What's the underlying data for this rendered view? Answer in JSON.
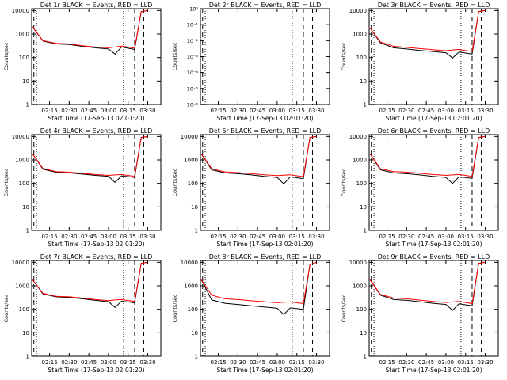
{
  "figure": {
    "xlabel": "Start Time (17-Sep-13 02:01:20)",
    "ylabel": "Counts/sec",
    "x_ticks": [
      "02:15",
      "02:30",
      "02:45",
      "03:00",
      "03:15",
      "03:30"
    ],
    "y_ticks_counts": [
      "1",
      "10",
      "100",
      "1000",
      "10000"
    ],
    "y_ticks_small": [
      "10⁰",
      "10⁻¹",
      "10⁻²",
      "10⁻³",
      "10⁻⁴",
      "10⁻⁵",
      "10⁻⁶"
    ]
  },
  "colors": {
    "events": "#000000",
    "lld": "#ff0000"
  },
  "chart_data": [
    {
      "type": "line",
      "title": "Det 1r BLACK = Events, RED = LLD",
      "xlabel": "Start Time (17-Sep-13 02:01:20)",
      "ylabel": "Counts/sec",
      "yscale": "log",
      "ylim": [
        1,
        12000
      ],
      "series": [
        {
          "name": "Events",
          "x": [
            "02:02",
            "02:10",
            "02:20",
            "02:30",
            "02:40",
            "02:50",
            "03:00",
            "03:05",
            "03:10",
            "03:20",
            "03:25",
            "03:30"
          ],
          "values": [
            2000,
            500,
            380,
            360,
            300,
            260,
            230,
            140,
            280,
            220,
            9000,
            10000
          ]
        },
        {
          "name": "LLD",
          "x": [
            "02:02",
            "02:10",
            "02:20",
            "02:30",
            "02:40",
            "02:50",
            "03:00",
            "03:05",
            "03:10",
            "03:20",
            "03:25",
            "03:30"
          ],
          "values": [
            2000,
            520,
            400,
            380,
            320,
            280,
            260,
            280,
            310,
            250,
            9000,
            10000
          ]
        }
      ]
    },
    {
      "type": "line",
      "title": "Det 2r BLACK = Events, RED = LLD",
      "xlabel": "Start Time (17-Sep-13 02:01:20)",
      "ylabel": "Counts/sec",
      "yscale": "log",
      "ylim": [
        1e-06,
        1
      ],
      "series": [
        {
          "name": "Events",
          "x": [],
          "values": []
        },
        {
          "name": "LLD",
          "x": [],
          "values": []
        }
      ]
    },
    {
      "type": "line",
      "title": "Det 3r BLACK = Events, RED = LLD",
      "xlabel": "Start Time (17-Sep-13 02:01:20)",
      "ylabel": "Counts/sec",
      "yscale": "log",
      "ylim": [
        1,
        12000
      ],
      "series": [
        {
          "name": "Events",
          "x": [
            "02:02",
            "02:10",
            "02:20",
            "02:30",
            "02:40",
            "02:50",
            "03:00",
            "03:05",
            "03:10",
            "03:20",
            "03:25",
            "03:30"
          ],
          "values": [
            1800,
            420,
            260,
            230,
            200,
            180,
            160,
            95,
            170,
            140,
            9000,
            10000
          ]
        },
        {
          "name": "LLD",
          "x": [
            "02:02",
            "02:10",
            "02:20",
            "02:30",
            "02:40",
            "02:50",
            "03:00",
            "03:05",
            "03:10",
            "03:20",
            "03:25",
            "03:30"
          ],
          "values": [
            1800,
            460,
            300,
            270,
            240,
            215,
            195,
            210,
            220,
            180,
            9000,
            10000
          ]
        }
      ]
    },
    {
      "type": "line",
      "title": "Det 4r BLACK = Events, RED = LLD",
      "xlabel": "Start Time (17-Sep-13 02:01:20)",
      "ylabel": "Counts/sec",
      "yscale": "log",
      "ylim": [
        1,
        12000
      ],
      "series": [
        {
          "name": "Events",
          "x": [
            "02:02",
            "02:10",
            "02:20",
            "02:30",
            "02:40",
            "02:50",
            "03:00",
            "03:05",
            "03:10",
            "03:20",
            "03:25",
            "03:30"
          ],
          "values": [
            1800,
            400,
            300,
            280,
            250,
            220,
            200,
            110,
            210,
            180,
            9000,
            10000
          ]
        },
        {
          "name": "LLD",
          "x": [
            "02:02",
            "02:10",
            "02:20",
            "02:30",
            "02:40",
            "02:50",
            "03:00",
            "03:05",
            "03:10",
            "03:20",
            "03:25",
            "03:30"
          ],
          "values": [
            1800,
            430,
            320,
            300,
            270,
            240,
            220,
            230,
            240,
            200,
            9000,
            10000
          ]
        }
      ]
    },
    {
      "type": "line",
      "title": "Det 5r BLACK = Events, RED = LLD",
      "xlabel": "Start Time (17-Sep-13 02:01:20)",
      "ylabel": "Counts/sec",
      "yscale": "log",
      "ylim": [
        1,
        12000
      ],
      "series": [
        {
          "name": "Events",
          "x": [
            "02:02",
            "02:10",
            "02:20",
            "02:30",
            "02:40",
            "02:50",
            "03:00",
            "03:05",
            "03:10",
            "03:20",
            "03:25",
            "03:30"
          ],
          "values": [
            1800,
            380,
            280,
            260,
            230,
            200,
            180,
            95,
            190,
            160,
            9000,
            10000
          ]
        },
        {
          "name": "LLD",
          "x": [
            "02:02",
            "02:10",
            "02:20",
            "02:30",
            "02:40",
            "02:50",
            "03:00",
            "03:05",
            "03:10",
            "03:20",
            "03:25",
            "03:30"
          ],
          "values": [
            1800,
            420,
            310,
            290,
            260,
            235,
            215,
            225,
            235,
            195,
            9000,
            10000
          ]
        }
      ]
    },
    {
      "type": "line",
      "title": "Det 6r BLACK = Events, RED = LLD",
      "xlabel": "Start Time (17-Sep-13 02:01:20)",
      "ylabel": "Counts/sec",
      "yscale": "log",
      "ylim": [
        1,
        12000
      ],
      "series": [
        {
          "name": "Events",
          "x": [
            "02:02",
            "02:10",
            "02:20",
            "02:30",
            "02:40",
            "02:50",
            "03:00",
            "03:05",
            "03:10",
            "03:20",
            "03:25",
            "03:30"
          ],
          "values": [
            1800,
            380,
            280,
            260,
            230,
            200,
            180,
            100,
            190,
            165,
            9000,
            10000
          ]
        },
        {
          "name": "LLD",
          "x": [
            "02:02",
            "02:10",
            "02:20",
            "02:30",
            "02:40",
            "02:50",
            "03:00",
            "03:05",
            "03:10",
            "03:20",
            "03:25",
            "03:30"
          ],
          "values": [
            1800,
            420,
            320,
            300,
            270,
            240,
            220,
            230,
            240,
            200,
            9000,
            10000
          ]
        }
      ]
    },
    {
      "type": "line",
      "title": "Det 7r BLACK = Events, RED = LLD",
      "xlabel": "Start Time (17-Sep-13 02:01:20)",
      "ylabel": "Counts/sec",
      "yscale": "log",
      "ylim": [
        1,
        12000
      ],
      "series": [
        {
          "name": "Events",
          "x": [
            "02:02",
            "02:10",
            "02:20",
            "02:30",
            "02:40",
            "02:50",
            "03:00",
            "03:05",
            "03:10",
            "03:20",
            "03:25",
            "03:30"
          ],
          "values": [
            1800,
            450,
            340,
            320,
            280,
            240,
            210,
            120,
            220,
            190,
            9000,
            10000
          ]
        },
        {
          "name": "LLD",
          "x": [
            "02:02",
            "02:10",
            "02:20",
            "02:30",
            "02:40",
            "02:50",
            "03:00",
            "03:05",
            "03:10",
            "03:20",
            "03:25",
            "03:30"
          ],
          "values": [
            1800,
            480,
            360,
            340,
            300,
            260,
            235,
            250,
            260,
            215,
            9000,
            10000
          ]
        }
      ]
    },
    {
      "type": "line",
      "title": "Det 8r BLACK = Events, RED = LLD",
      "xlabel": "Start Time (17-Sep-13 02:01:20)",
      "ylabel": "Counts/sec",
      "yscale": "log",
      "ylim": [
        1,
        12000
      ],
      "series": [
        {
          "name": "Events",
          "x": [
            "02:02",
            "02:10",
            "02:20",
            "02:30",
            "02:40",
            "02:50",
            "03:00",
            "03:05",
            "03:10",
            "03:20",
            "03:25",
            "03:30"
          ],
          "values": [
            1800,
            250,
            180,
            160,
            140,
            125,
            110,
            60,
            115,
            100,
            8000,
            10000
          ]
        },
        {
          "name": "LLD",
          "x": [
            "02:02",
            "02:10",
            "02:20",
            "02:30",
            "02:40",
            "02:50",
            "03:00",
            "03:05",
            "03:10",
            "03:20",
            "03:25",
            "03:30"
          ],
          "values": [
            1800,
            400,
            280,
            260,
            230,
            210,
            190,
            200,
            205,
            175,
            8000,
            10000
          ]
        }
      ]
    },
    {
      "type": "line",
      "title": "Det 9r BLACK = Events, RED = LLD",
      "xlabel": "Start Time (17-Sep-13 02:01:20)",
      "ylabel": "Counts/sec",
      "yscale": "log",
      "ylim": [
        1,
        12000
      ],
      "series": [
        {
          "name": "Events",
          "x": [
            "02:02",
            "02:10",
            "02:20",
            "02:30",
            "02:40",
            "02:50",
            "03:00",
            "03:05",
            "03:10",
            "03:20",
            "03:25",
            "03:30"
          ],
          "values": [
            1800,
            400,
            260,
            240,
            210,
            180,
            160,
            90,
            170,
            140,
            9000,
            10000
          ]
        },
        {
          "name": "LLD",
          "x": [
            "02:02",
            "02:10",
            "02:20",
            "02:30",
            "02:40",
            "02:50",
            "03:00",
            "03:05",
            "03:10",
            "03:20",
            "03:25",
            "03:30"
          ],
          "values": [
            1800,
            430,
            300,
            280,
            245,
            215,
            195,
            205,
            215,
            175,
            9000,
            10000
          ]
        }
      ]
    }
  ]
}
